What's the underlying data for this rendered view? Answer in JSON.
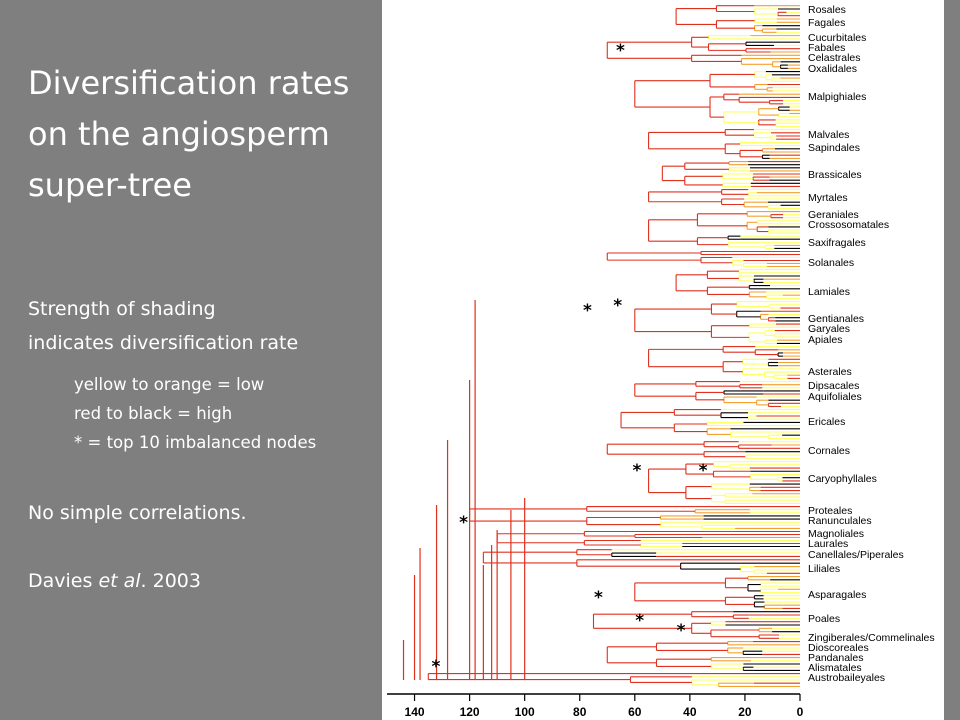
{
  "slide": {
    "title": "Diversification rates on the angiosperm super-tree",
    "shading_line1": "Strength of shading",
    "shading_line2": "indicates diversification rate",
    "legend_low": "yellow to orange = low",
    "legend_high": "red to black = high",
    "legend_star": "* = top 10 imbalanced nodes",
    "conclusion": "No simple correlations.",
    "citation_prefix": "Davies ",
    "citation_etal": "et al",
    "citation_suffix": ". 2003"
  },
  "figure": {
    "rate_colors": {
      "low": "#ffff66",
      "orange": "#f4a030",
      "red": "#e0301e",
      "high": "#000000"
    },
    "axis_ticks": [
      "140",
      "120",
      "100",
      "80",
      "60",
      "40",
      "20",
      "0"
    ],
    "axis_tick_values": [
      140,
      120,
      100,
      80,
      60,
      40,
      20,
      0
    ],
    "axis_max": 150,
    "taxa": [
      "Rosales",
      "Fagales",
      "Cucurbitales",
      "Fabales",
      "Celastrales",
      "Oxalidales",
      "Malpighiales",
      "Malvales",
      "Sapindales",
      "Brassicales",
      "Myrtales",
      "Geraniales",
      "Crossosomatales",
      "Saxifragales",
      "Solanales",
      "Lamiales",
      "Gentianales",
      "Garyales",
      "Apiales",
      "Asterales",
      "Dipsacales",
      "Aquifoliales",
      "Ericales",
      "Cornales",
      "Caryophyllales",
      "Proteales",
      "Ranunculales",
      "Magnoliales",
      "Laurales",
      "Canellales/Piperales",
      "Liliales",
      "Asparagales",
      "Poales",
      "Zingiberales/Commelinales",
      "Dioscoreales",
      "Pandanales",
      "Alismatales",
      "Austrobaileyales"
    ],
    "star_marker": "*",
    "imbalanced_node_ages": [
      65,
      77,
      66,
      59,
      35,
      122,
      73,
      58,
      43,
      132
    ]
  }
}
